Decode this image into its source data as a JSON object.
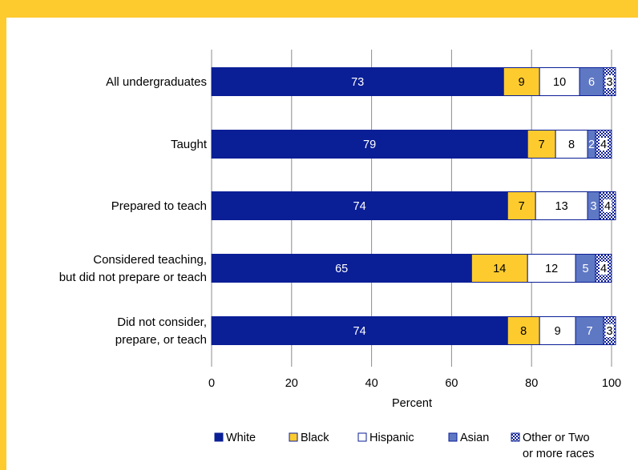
{
  "chart_data": {
    "type": "bar",
    "orientation": "horizontal",
    "stacked": true,
    "categories": [
      [
        "All undergraduates"
      ],
      [
        "Taught"
      ],
      [
        "Prepared to teach"
      ],
      [
        "Considered teaching,",
        "but did not prepare or teach"
      ],
      [
        "Did not consider,",
        "prepare, or teach"
      ]
    ],
    "series": [
      {
        "name": "White",
        "values": [
          73,
          79,
          74,
          65,
          74
        ],
        "color": "#0A1E96",
        "label_color": "#FFFFFF",
        "pattern": "solid"
      },
      {
        "name": "Black",
        "values": [
          9,
          7,
          7,
          14,
          8
        ],
        "color": "#FDCB2E",
        "label_color": "#000000",
        "pattern": "solid"
      },
      {
        "name": "Hispanic",
        "values": [
          10,
          8,
          13,
          12,
          9
        ],
        "color": "#FFFFFF",
        "label_color": "#000000",
        "pattern": "solid"
      },
      {
        "name": "Asian",
        "values": [
          6,
          2,
          3,
          5,
          7
        ],
        "color": "#5F78C4",
        "label_color": "#FFFFFF",
        "pattern": "solid"
      },
      {
        "name": "Other or Two or more races",
        "legend_lines": [
          "Other or Two",
          "or more races"
        ],
        "values": [
          3,
          4,
          4,
          4,
          3
        ],
        "color": "#FFFFFF",
        "label_color": "#000000",
        "pattern": "checker"
      }
    ],
    "xlabel": "Percent",
    "xlim": [
      0,
      100
    ],
    "xticks": [
      0,
      20,
      40,
      60,
      80,
      100
    ],
    "grid": true,
    "legend_position": "bottom"
  }
}
